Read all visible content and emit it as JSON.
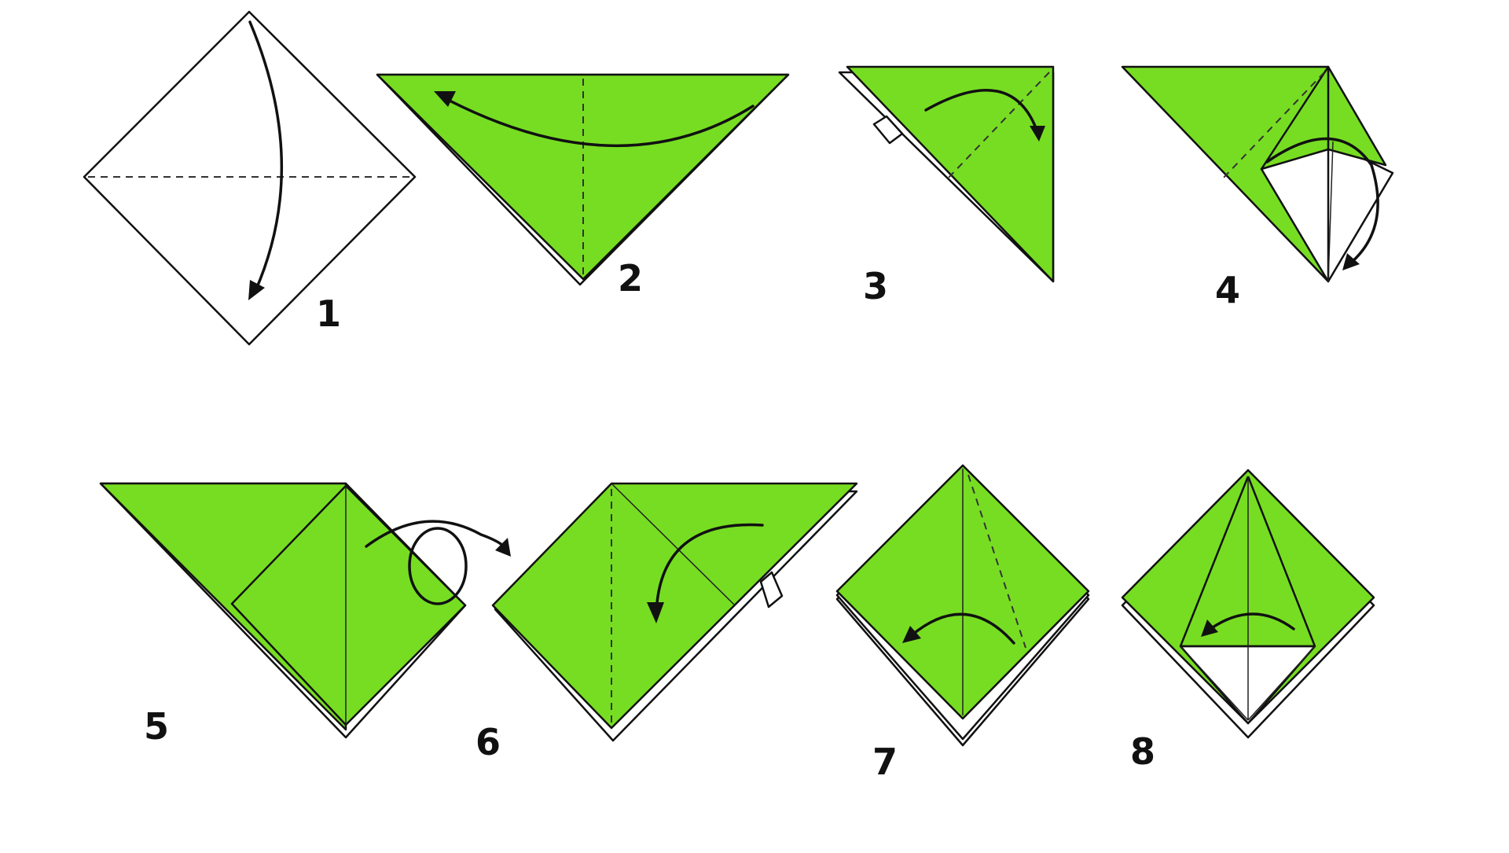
{
  "diagram": {
    "steps": [
      {
        "number": "1"
      },
      {
        "number": "2"
      },
      {
        "number": "3"
      },
      {
        "number": "4"
      },
      {
        "number": "5"
      },
      {
        "number": "6"
      },
      {
        "number": "7"
      },
      {
        "number": "8"
      }
    ],
    "colors": {
      "paper_front": "#77dd22",
      "paper_back": "#ffffff",
      "lines": "#111111"
    }
  }
}
